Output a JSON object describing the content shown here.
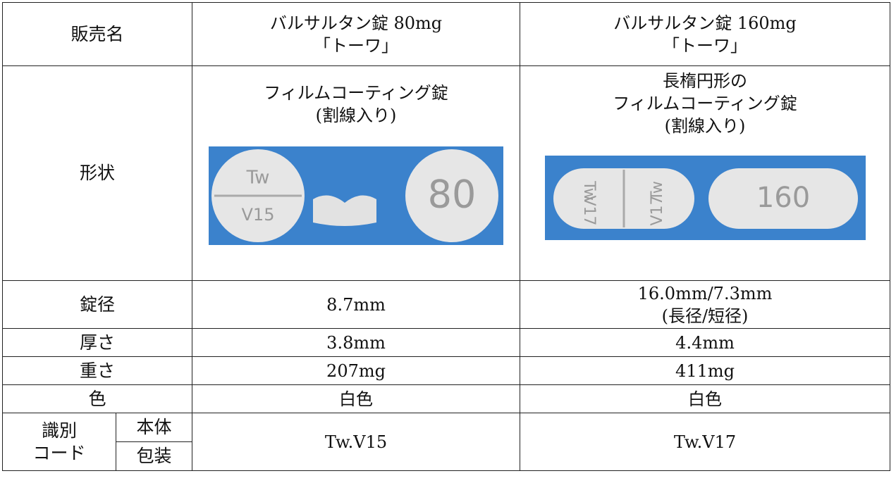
{
  "table": {
    "rows": [
      {
        "label": "販売名",
        "values": [
          [
            "バルサルタン錠 80mg",
            "「トーワ」"
          ],
          [
            "バルサルタン錠 160mg",
            "「トーワ」"
          ]
        ]
      },
      {
        "label": "形状",
        "values": [
          [
            "フィルムコーティング錠",
            "(割線入り)"
          ],
          [
            "長楕円形の",
            "フィルムコーティング錠",
            "(割線入り)"
          ]
        ],
        "images": [
          {
            "imprints": [
              "Tw",
              "V15",
              "80"
            ]
          },
          {
            "imprints": [
              "Tw",
              "V17",
              "160"
            ]
          }
        ]
      },
      {
        "label": "錠径",
        "values": [
          [
            "8.7mm"
          ],
          [
            "16.0mm/7.3mm",
            "(長径/短径)"
          ]
        ]
      },
      {
        "label": "厚さ",
        "values": [
          [
            "3.8mm"
          ],
          [
            "4.4mm"
          ]
        ]
      },
      {
        "label": "重さ",
        "values": [
          [
            "207mg"
          ],
          [
            "411mg"
          ]
        ]
      },
      {
        "label": "色",
        "values": [
          [
            "白色"
          ],
          [
            "白色"
          ]
        ]
      },
      {
        "label": [
          "識別",
          "コード"
        ],
        "sublabels": [
          "本体",
          "包装"
        ],
        "values": [
          [
            "Tw.V15"
          ],
          [
            "Tw.V17"
          ]
        ]
      }
    ]
  }
}
